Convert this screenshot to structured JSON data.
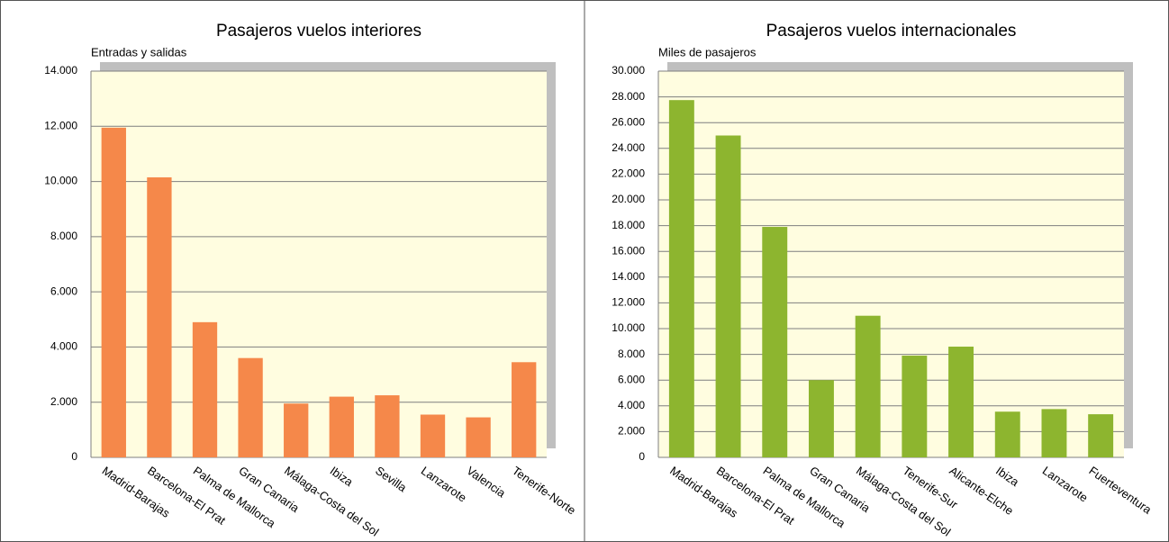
{
  "chart_data": [
    {
      "type": "bar",
      "title": "Pasajeros vuelos interiores",
      "subtitle": "Entradas y salidas",
      "categories": [
        "Madrid-Barajas",
        "Barcelona-El Prat",
        "Palma  de Mallorca",
        "Gran Canaria",
        "Málaga-Costa del Sol",
        "Ibiza",
        "Sevilla",
        "Lanzarote",
        "Valencia",
        "Tenerife-Norte"
      ],
      "values": [
        11950,
        10150,
        4900,
        3600,
        1950,
        2200,
        2250,
        1550,
        1450,
        3450
      ],
      "color": "#f5884a",
      "ylim": [
        0,
        14000
      ],
      "yticks": [
        0,
        {
          "value": 2000,
          "label": "2.000"
        },
        {
          "value": 4000,
          "label": "4.000"
        },
        {
          "value": 6000,
          "label": "6.000"
        },
        {
          "value": 8000,
          "label": "8.000"
        },
        {
          "value": 10000,
          "label": "10.000"
        },
        {
          "value": 12000,
          "label": "12.000"
        },
        {
          "value": 14000,
          "label": "14.000"
        }
      ],
      "grid": true
    },
    {
      "type": "bar",
      "title": "Pasajeros vuelos internacionales",
      "subtitle": "Miles de pasajeros",
      "categories": [
        "Madrid-Barajas",
        "Barcelona-El Prat",
        "Palma  de Mallorca",
        "Gran Canaria",
        "Málaga-Costa del Sol",
        "Tenerife-Sur",
        "Alicante-Elche",
        "Ibiza",
        "Lanzarote",
        "Fuerteventura"
      ],
      "values": [
        27750,
        25000,
        17900,
        6000,
        11000,
        7900,
        8600,
        3550,
        3750,
        3350
      ],
      "color": "#8db52f",
      "ylim": [
        0,
        30000
      ],
      "yticks": [
        0,
        {
          "value": 2000,
          "label": "2.000"
        },
        {
          "value": 4000,
          "label": "4.000"
        },
        {
          "value": 6000,
          "label": "6.000"
        },
        {
          "value": 8000,
          "label": "8.000"
        },
        {
          "value": 10000,
          "label": "10.000"
        },
        {
          "value": 12000,
          "label": "12.000"
        },
        {
          "value": 14000,
          "label": "14.000"
        },
        {
          "value": 16000,
          "label": "16.000"
        },
        {
          "value": 18000,
          "label": "18.000"
        },
        {
          "value": 20000,
          "label": "20.000"
        },
        {
          "value": 22000,
          "label": "22.000"
        },
        {
          "value": 24000,
          "label": "24.000"
        },
        {
          "value": 26000,
          "label": "26.000"
        },
        {
          "value": 28000,
          "label": "28.000"
        },
        {
          "value": 30000,
          "label": "30.000"
        }
      ],
      "grid": true
    }
  ]
}
